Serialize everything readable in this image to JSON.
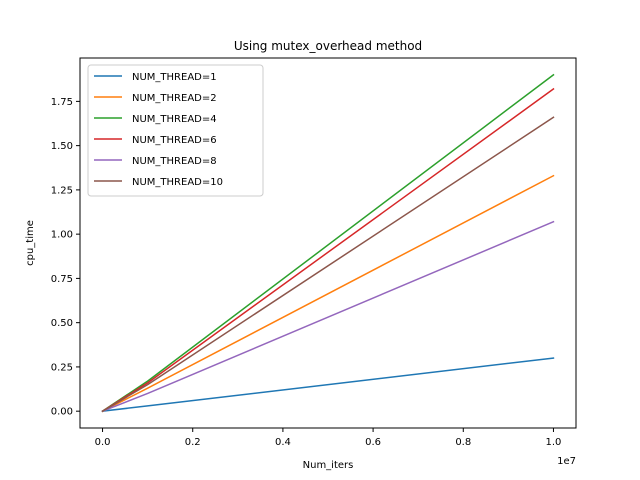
{
  "chart_data": {
    "type": "line",
    "title": "Using mutex_overhead method",
    "xlabel": "Num_iters",
    "ylabel": "cpu_time",
    "x_offset_label": "1e7",
    "x": [
      0,
      1000000,
      10000000
    ],
    "xlim": [
      -500000,
      10500000
    ],
    "ylim": [
      -0.095,
      1.995
    ],
    "x_ticks": [
      {
        "value": 0,
        "label": "0.0"
      },
      {
        "value": 2000000,
        "label": "0.2"
      },
      {
        "value": 4000000,
        "label": "0.4"
      },
      {
        "value": 6000000,
        "label": "0.6"
      },
      {
        "value": 8000000,
        "label": "0.8"
      },
      {
        "value": 10000000,
        "label": "1.0"
      }
    ],
    "y_ticks": [
      {
        "value": 0.0,
        "label": "0.00"
      },
      {
        "value": 0.25,
        "label": "0.25"
      },
      {
        "value": 0.5,
        "label": "0.50"
      },
      {
        "value": 0.75,
        "label": "0.75"
      },
      {
        "value": 1.0,
        "label": "1.00"
      },
      {
        "value": 1.25,
        "label": "1.25"
      },
      {
        "value": 1.5,
        "label": "1.50"
      },
      {
        "value": 1.75,
        "label": "1.75"
      }
    ],
    "grid": false,
    "legend_position": "top-left",
    "series": [
      {
        "name": "NUM_THREAD=1",
        "color": "#1f77b4",
        "values": [
          0,
          0.03,
          0.3
        ]
      },
      {
        "name": "NUM_THREAD=2",
        "color": "#ff7f0e",
        "values": [
          0,
          0.13,
          1.33
        ]
      },
      {
        "name": "NUM_THREAD=4",
        "color": "#2ca02c",
        "values": [
          0,
          0.17,
          1.9
        ]
      },
      {
        "name": "NUM_THREAD=6",
        "color": "#d62728",
        "values": [
          0,
          0.16,
          1.82
        ]
      },
      {
        "name": "NUM_THREAD=8",
        "color": "#9467bd",
        "values": [
          0,
          0.1,
          1.07
        ]
      },
      {
        "name": "NUM_THREAD=10",
        "color": "#8c564b",
        "values": [
          0,
          0.15,
          1.66
        ]
      }
    ]
  }
}
